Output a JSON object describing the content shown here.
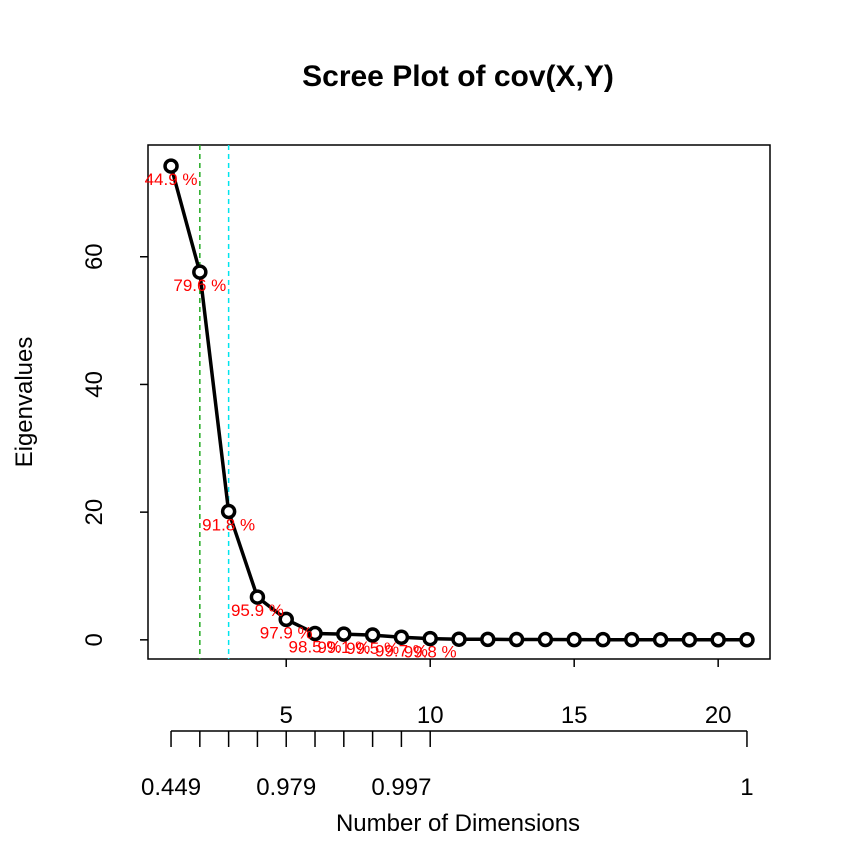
{
  "chart_data": {
    "type": "line",
    "title": "Scree Plot of cov(X,Y)",
    "xlabel": "Number of Dimensions",
    "ylabel": "Eigenvalues",
    "xlim": [
      0.2,
      21.8
    ],
    "ylim": [
      -3,
      77.5
    ],
    "x": [
      1,
      2,
      3,
      4,
      5,
      6,
      7,
      8,
      9,
      10,
      11,
      12,
      13,
      14,
      15,
      16,
      17,
      18,
      19,
      20,
      21
    ],
    "values": [
      74.2,
      57.6,
      20.1,
      6.7,
      3.2,
      1.0,
      0.9,
      0.75,
      0.4,
      0.2,
      0.1,
      0.08,
      0.06,
      0.05,
      0.04,
      0.03,
      0.03,
      0.02,
      0.02,
      0.01,
      0.01
    ],
    "x_ticks": [
      5,
      10,
      15,
      20
    ],
    "y_ticks": [
      0,
      20,
      40,
      60
    ],
    "cumulative_labels": [
      {
        "x": 1,
        "text": "44.9 %"
      },
      {
        "x": 2,
        "text": "79.6 %"
      },
      {
        "x": 3,
        "text": "91.8 %"
      },
      {
        "x": 4,
        "text": "95.9 %"
      },
      {
        "x": 5,
        "text": "97.9 %"
      },
      {
        "x": 6,
        "text": "98.5 %"
      },
      {
        "x": 7,
        "text": "99.1 %"
      },
      {
        "x": 8,
        "text": "99.5 %"
      },
      {
        "x": 9,
        "text": "99.7 %"
      },
      {
        "x": 10,
        "text": "99.8 %"
      }
    ],
    "reference_lines": [
      {
        "x": 2,
        "color": "#22aa22"
      },
      {
        "x": 3,
        "color": "#00e5ee"
      }
    ],
    "cumulative_axis": {
      "tick_positions": [
        1,
        2,
        3,
        4,
        5,
        6,
        7,
        8,
        9,
        10,
        21
      ],
      "labels": [
        {
          "x": 1,
          "text": "0.449"
        },
        {
          "x": 5,
          "text": "0.979"
        },
        {
          "x": 9,
          "text": "0.997"
        },
        {
          "x": 21,
          "text": "1"
        }
      ]
    },
    "line_color": "#000000",
    "label_color": "#ff0000",
    "grid": false,
    "legend": "none"
  }
}
